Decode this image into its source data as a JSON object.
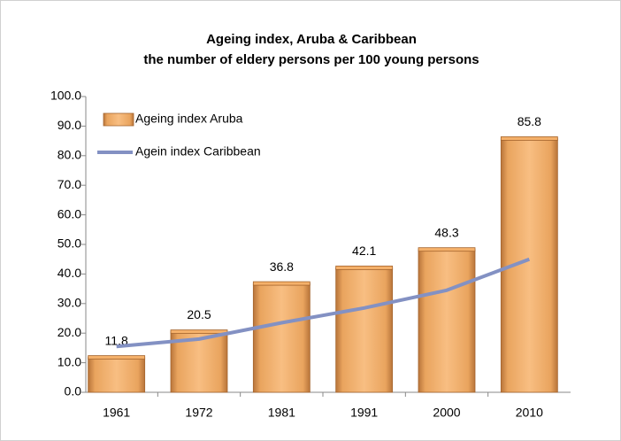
{
  "chart_data": {
    "type": "bar_line",
    "title": "Ageing index, Aruba & Caribbean",
    "subtitle": "the number of eldery persons per 100 young persons",
    "categories": [
      "1961",
      "1972",
      "1981",
      "1991",
      "2000",
      "2010"
    ],
    "series": [
      {
        "name": "Ageing index Aruba",
        "type": "bar",
        "color": "#f4b06a",
        "values": [
          11.8,
          20.5,
          36.8,
          42.1,
          48.3,
          85.8
        ],
        "value_labels": [
          "11.8",
          "20.5",
          "36.8",
          "42.1",
          "48.3",
          "85.8"
        ]
      },
      {
        "name": "Agein index Caribbean",
        "type": "line",
        "color": "#8391c3",
        "values": [
          15.5,
          18.0,
          23.5,
          28.5,
          34.5,
          45.0
        ]
      }
    ],
    "ylim": [
      0,
      100
    ],
    "yticks": [
      {
        "value": 0,
        "label": "0.0"
      },
      {
        "value": 10,
        "label": "10.0"
      },
      {
        "value": 20,
        "label": "20.0"
      },
      {
        "value": 30,
        "label": "30.0"
      },
      {
        "value": 40,
        "label": "40.0"
      },
      {
        "value": 50,
        "label": "50.0"
      },
      {
        "value": 60,
        "label": "60.0"
      },
      {
        "value": 70,
        "label": "70.0"
      },
      {
        "value": 80,
        "label": "80.0"
      },
      {
        "value": 90,
        "label": "90.0"
      },
      {
        "value": 100,
        "label": "100.0"
      }
    ],
    "legend": "top-left"
  }
}
